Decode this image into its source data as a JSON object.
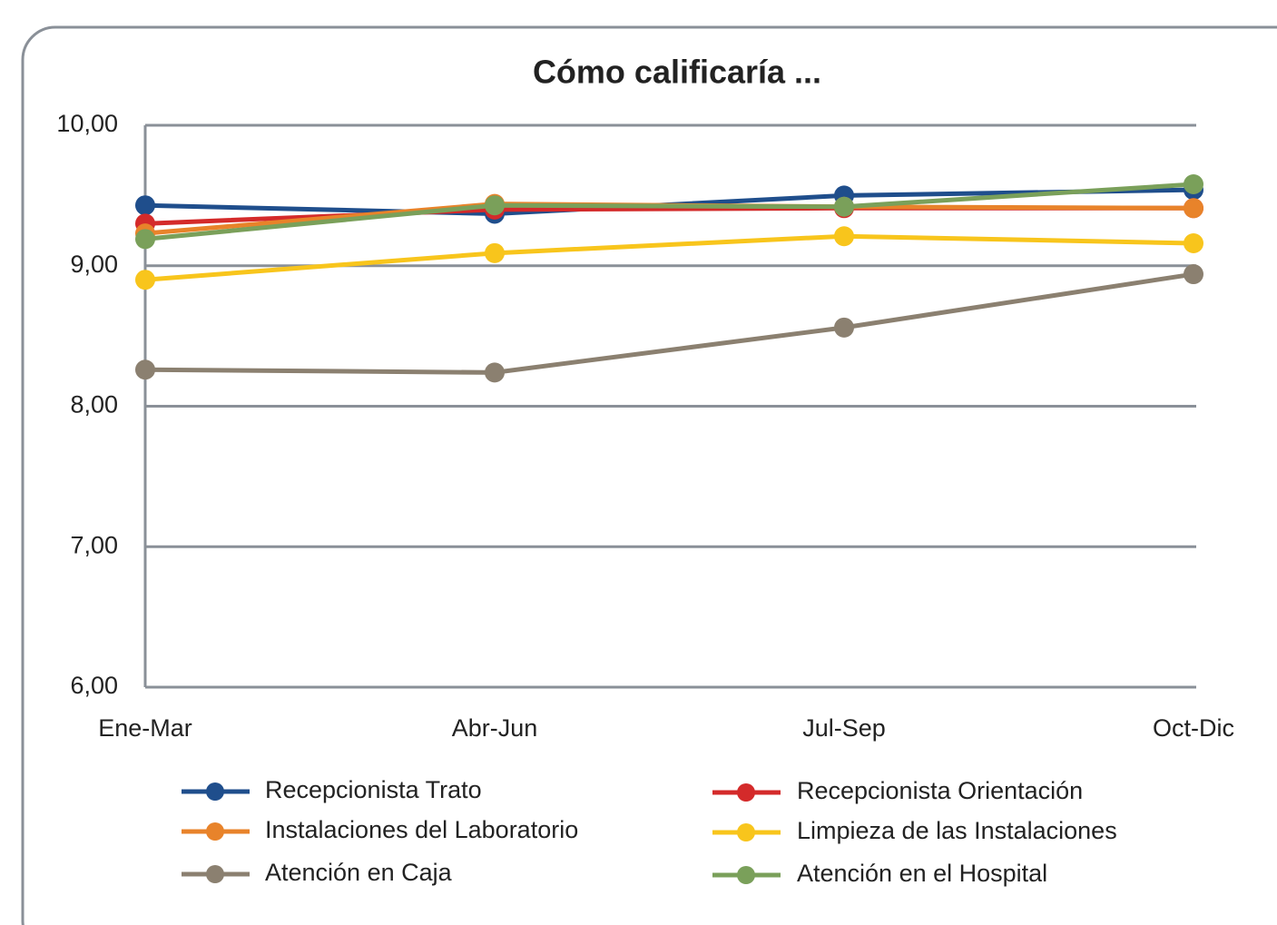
{
  "chart_data": {
    "type": "line",
    "title": "Cómo calificaría ...",
    "categories": [
      "Ene-Mar",
      "Abr-Jun",
      "Jul-Sep",
      "Oct-Dic"
    ],
    "series": [
      {
        "name": "Recepcionista Trato",
        "color": "#1f4e8c",
        "values": [
          9.43,
          9.37,
          9.5,
          9.54
        ]
      },
      {
        "name": "Recepcionista Orientación",
        "color": "#d42a2a",
        "values": [
          9.3,
          9.4,
          9.41,
          9.41
        ]
      },
      {
        "name": "Instalaciones del Laboratorio",
        "color": "#e8832a",
        "values": [
          9.23,
          9.44,
          9.42,
          9.41
        ]
      },
      {
        "name": "Limpieza de las Instalaciones",
        "color": "#f8c51c",
        "values": [
          8.9,
          9.09,
          9.21,
          9.16
        ]
      },
      {
        "name": "Atención en Caja",
        "color": "#8b8070",
        "values": [
          8.26,
          8.24,
          8.56,
          8.94
        ]
      },
      {
        "name": "Atención en el Hospital",
        "color": "#7aa05a",
        "values": [
          9.19,
          9.43,
          9.42,
          9.58
        ]
      }
    ],
    "ylim": [
      6,
      10
    ],
    "yticks": [
      {
        "value": 6,
        "label": "6,00"
      },
      {
        "value": 7,
        "label": "7,00"
      },
      {
        "value": 8,
        "label": "8,00"
      },
      {
        "value": 9,
        "label": "9,00"
      },
      {
        "value": 10,
        "label": "10,00"
      }
    ],
    "grid": true
  }
}
